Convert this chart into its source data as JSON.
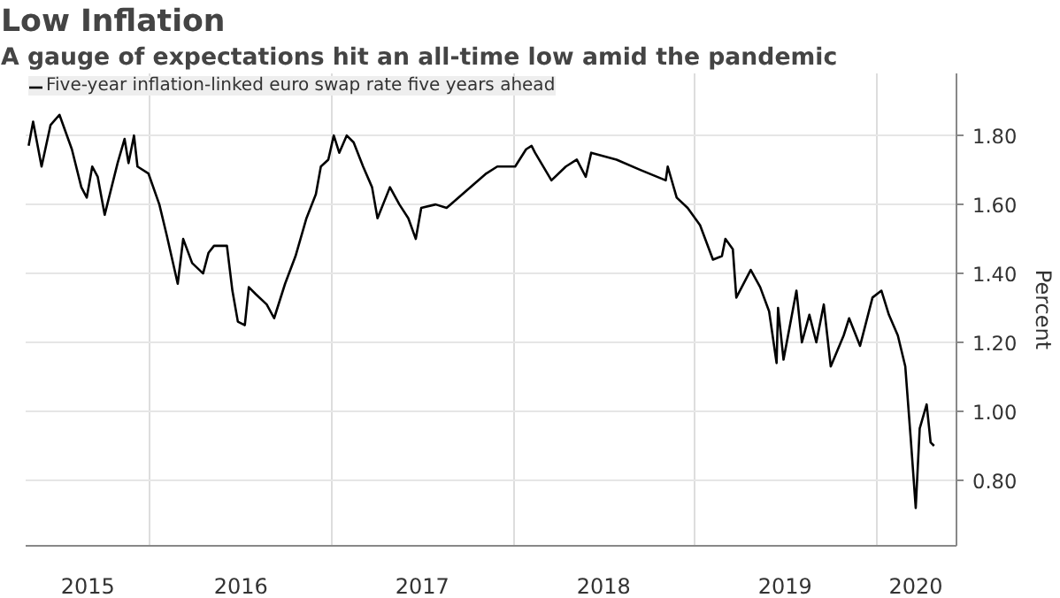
{
  "chart_data": {
    "type": "line",
    "title": "Low Inflation",
    "subtitle": "A gauge of expectations hit an all-time low amid the pandemic",
    "ylabel": "Percent",
    "x": [
      "2015-05-01",
      "2015-05-10",
      "2015-05-27",
      "2015-06-14",
      "2015-07-02",
      "2015-07-27",
      "2015-08-15",
      "2015-08-26",
      "2015-09-06",
      "2015-09-17",
      "2015-10-01",
      "2015-10-27",
      "2015-11-10",
      "2015-11-18",
      "2015-11-29",
      "2015-12-06",
      "2015-12-28",
      "2016-01-19",
      "2016-02-03",
      "2016-02-25",
      "2016-03-07",
      "2016-03-25",
      "2016-04-16",
      "2016-04-27",
      "2016-05-08",
      "2016-06-03",
      "2016-06-14",
      "2016-06-25",
      "2016-07-09",
      "2016-07-17",
      "2016-07-31",
      "2016-08-22",
      "2016-09-06",
      "2016-09-28",
      "2016-10-19",
      "2016-11-10",
      "2016-11-29",
      "2016-12-09",
      "2016-12-24",
      "2017-01-04",
      "2017-01-15",
      "2017-01-30",
      "2017-02-13",
      "2017-03-04",
      "2017-03-22",
      "2017-04-02",
      "2017-04-27",
      "2017-05-16",
      "2017-06-03",
      "2017-06-18",
      "2017-06-29",
      "2017-07-28",
      "2017-08-19",
      "2017-09-28",
      "2017-11-07",
      "2017-11-29",
      "2017-12-17",
      "2018-01-04",
      "2018-01-26",
      "2018-02-06",
      "2018-02-13",
      "2018-03-18",
      "2018-04-16",
      "2018-05-08",
      "2018-05-26",
      "2018-06-06",
      "2018-07-27",
      "2018-09-13",
      "2018-11-03",
      "2018-11-07",
      "2018-11-25",
      "2018-12-17",
      "2019-01-11",
      "2019-02-06",
      "2019-02-24",
      "2019-03-03",
      "2019-03-18",
      "2019-03-25",
      "2019-04-23",
      "2019-05-12",
      "2019-05-30",
      "2019-06-14",
      "2019-06-17",
      "2019-06-28",
      "2019-07-24",
      "2019-08-04",
      "2019-08-19",
      "2019-09-02",
      "2019-09-17",
      "2019-10-01",
      "2019-10-27",
      "2019-11-07",
      "2019-11-29",
      "2019-12-24",
      "2020-01-11",
      "2020-01-26",
      "2020-02-13",
      "2020-02-28",
      "2020-03-10",
      "2020-03-20",
      "2020-03-28",
      "2020-04-11",
      "2020-04-19",
      "2020-04-26"
    ],
    "series": [
      {
        "name": "Five-year inflation-linked euro swap rate five years ahead",
        "color": "#000000",
        "values": [
          1.77,
          1.84,
          1.71,
          1.83,
          1.86,
          1.76,
          1.65,
          1.62,
          1.71,
          1.68,
          1.57,
          1.72,
          1.79,
          1.72,
          1.8,
          1.71,
          1.69,
          1.6,
          1.51,
          1.37,
          1.5,
          1.43,
          1.4,
          1.46,
          1.48,
          1.48,
          1.35,
          1.26,
          1.25,
          1.36,
          1.34,
          1.31,
          1.27,
          1.37,
          1.45,
          1.56,
          1.63,
          1.71,
          1.73,
          1.8,
          1.75,
          1.8,
          1.78,
          1.71,
          1.65,
          1.56,
          1.65,
          1.6,
          1.56,
          1.5,
          1.59,
          1.6,
          1.59,
          1.64,
          1.69,
          1.71,
          1.71,
          1.71,
          1.76,
          1.77,
          1.75,
          1.67,
          1.71,
          1.73,
          1.68,
          1.75,
          1.73,
          1.7,
          1.67,
          1.71,
          1.62,
          1.59,
          1.54,
          1.44,
          1.45,
          1.5,
          1.47,
          1.33,
          1.41,
          1.36,
          1.29,
          1.14,
          1.3,
          1.15,
          1.35,
          1.2,
          1.28,
          1.2,
          1.31,
          1.13,
          1.22,
          1.27,
          1.19,
          1.33,
          1.35,
          1.28,
          1.22,
          1.13,
          0.92,
          0.72,
          0.95,
          1.02,
          0.91,
          0.9
        ]
      }
    ],
    "xlim": [
      "2015-04-25",
      "2020-06-10"
    ],
    "xticks": [
      {
        "value": "2015-08-28",
        "label": "2015"
      },
      {
        "value": "2016-01-01",
        "label": null
      },
      {
        "value": "2016-07-01",
        "label": "2016"
      },
      {
        "value": "2017-01-01",
        "label": null
      },
      {
        "value": "2017-07-01",
        "label": "2017"
      },
      {
        "value": "2018-01-01",
        "label": null
      },
      {
        "value": "2018-07-01",
        "label": "2018"
      },
      {
        "value": "2019-01-01",
        "label": null
      },
      {
        "value": "2019-07-01",
        "label": "2019"
      },
      {
        "value": "2020-01-01",
        "label": null
      },
      {
        "value": "2020-03-20",
        "label": "2020"
      }
    ],
    "ylim": [
      0.61,
      1.98
    ],
    "yticks": [
      {
        "value": 0.8,
        "label": "0.80"
      },
      {
        "value": 1.0,
        "label": "1.00"
      },
      {
        "value": 1.2,
        "label": "1.20"
      },
      {
        "value": 1.4,
        "label": "1.40"
      },
      {
        "value": 1.6,
        "label": "1.60"
      },
      {
        "value": 1.8,
        "label": "1.80"
      }
    ],
    "grid": true,
    "legend": "top left"
  }
}
